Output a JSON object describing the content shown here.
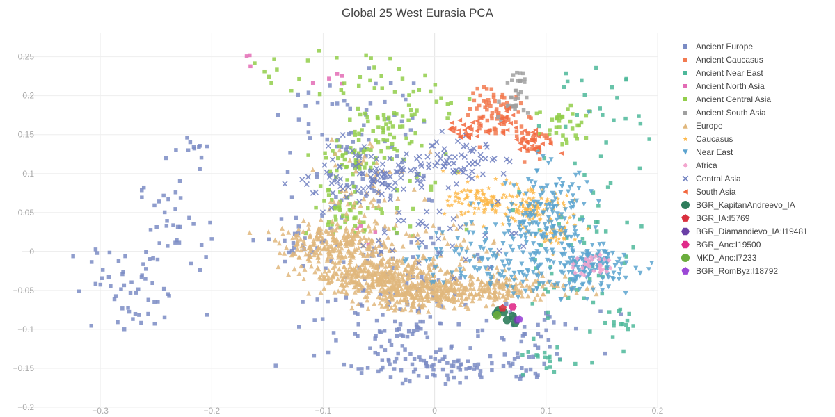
{
  "chart_data": {
    "type": "scatter",
    "title": "Global 25 West Eurasia PCA",
    "xlabel": "",
    "ylabel": "",
    "xlim": [
      -0.37,
      0.2
    ],
    "ylim": [
      -0.2,
      0.28
    ],
    "x_ticks": [
      "−0.3",
      "−0.2",
      "−0.1",
      "0",
      "0.1",
      "0.2"
    ],
    "x_tick_values": [
      -0.3,
      -0.2,
      -0.1,
      0,
      0.1,
      0.2
    ],
    "y_ticks": [
      "0.25",
      "0.2",
      "0.15",
      "0.1",
      "0.05",
      "0",
      "−0.05",
      "−0.1",
      "−0.15",
      "−0.2"
    ],
    "y_tick_values": [
      0.25,
      0.2,
      0.15,
      0.1,
      0.05,
      0,
      -0.05,
      -0.1,
      -0.15,
      -0.2
    ],
    "grid": true,
    "legend_position": "right",
    "series": [
      {
        "name": "Ancient Europe",
        "symbol": "square",
        "color": "#7b8cc4",
        "n_points": 480,
        "clusters": [
          {
            "cx": -0.27,
            "cy": -0.05,
            "sx": 0.03,
            "sy": 0.03,
            "w": 0.12
          },
          {
            "cx": -0.235,
            "cy": 0.04,
            "sx": 0.015,
            "sy": 0.03,
            "w": 0.06
          },
          {
            "cx": -0.22,
            "cy": 0.125,
            "sx": 0.01,
            "sy": 0.01,
            "w": 0.025
          },
          {
            "cx": 0.02,
            "cy": -0.145,
            "sx": 0.05,
            "sy": 0.012,
            "w": 0.22
          },
          {
            "cx": -0.08,
            "cy": 0.18,
            "sx": 0.03,
            "sy": 0.03,
            "w": 0.08
          },
          {
            "cx": -0.04,
            "cy": -0.05,
            "sx": 0.04,
            "sy": 0.04,
            "w": 0.2
          },
          {
            "cx": -0.07,
            "cy": 0.1,
            "sx": 0.025,
            "sy": 0.03,
            "w": 0.1
          },
          {
            "cx": 0.08,
            "cy": -0.1,
            "sx": 0.03,
            "sy": 0.02,
            "w": 0.08
          },
          {
            "cx": -0.12,
            "cy": 0.01,
            "sx": 0.02,
            "sy": 0.02,
            "w": 0.06
          },
          {
            "cx": -0.03,
            "cy": -0.1,
            "sx": 0.02,
            "sy": 0.02,
            "w": 0.06
          }
        ]
      },
      {
        "name": "Ancient Caucasus",
        "symbol": "square",
        "color": "#f27a50",
        "n_points": 90,
        "clusters": [
          {
            "cx": 0.055,
            "cy": 0.17,
            "sx": 0.012,
            "sy": 0.015,
            "w": 0.5
          },
          {
            "cx": 0.09,
            "cy": 0.145,
            "sx": 0.008,
            "sy": 0.01,
            "w": 0.25
          },
          {
            "cx": 0.05,
            "cy": 0.19,
            "sx": 0.008,
            "sy": 0.01,
            "w": 0.25
          }
        ]
      },
      {
        "name": "Ancient Near East",
        "symbol": "square",
        "color": "#4db89a",
        "n_points": 110,
        "clusters": [
          {
            "cx": 0.14,
            "cy": 0.03,
            "sx": 0.03,
            "sy": 0.06,
            "w": 0.35
          },
          {
            "cx": 0.16,
            "cy": -0.1,
            "sx": 0.012,
            "sy": 0.012,
            "w": 0.15
          },
          {
            "cx": 0.1,
            "cy": -0.14,
            "sx": 0.02,
            "sy": 0.01,
            "w": 0.15
          },
          {
            "cx": 0.14,
            "cy": 0.18,
            "sx": 0.025,
            "sy": 0.03,
            "w": 0.2
          },
          {
            "cx": 0.11,
            "cy": -0.05,
            "sx": 0.02,
            "sy": 0.015,
            "w": 0.15
          }
        ]
      },
      {
        "name": "Ancient North Asia",
        "symbol": "square",
        "color": "#e36cb5",
        "n_points": 12,
        "clusters": [
          {
            "cx": -0.168,
            "cy": 0.245,
            "sx": 0.002,
            "sy": 0.004,
            "w": 0.25
          },
          {
            "cx": -0.09,
            "cy": 0.22,
            "sx": 0.015,
            "sy": 0.01,
            "w": 0.4
          },
          {
            "cx": -0.07,
            "cy": 0.035,
            "sx": 0.01,
            "sy": 0.01,
            "w": 0.35
          }
        ]
      },
      {
        "name": "Ancient Central Asia",
        "symbol": "square",
        "color": "#92ce4a",
        "n_points": 240,
        "clusters": [
          {
            "cx": -0.07,
            "cy": 0.12,
            "sx": 0.02,
            "sy": 0.015,
            "w": 0.22
          },
          {
            "cx": -0.04,
            "cy": 0.16,
            "sx": 0.015,
            "sy": 0.012,
            "w": 0.14
          },
          {
            "cx": -0.08,
            "cy": 0.05,
            "sx": 0.015,
            "sy": 0.015,
            "w": 0.18
          },
          {
            "cx": 0.12,
            "cy": 0.16,
            "sx": 0.015,
            "sy": 0.02,
            "w": 0.14
          },
          {
            "cx": -0.03,
            "cy": 0.1,
            "sx": 0.03,
            "sy": 0.04,
            "w": 0.12
          },
          {
            "cx": -0.06,
            "cy": 0.22,
            "sx": 0.04,
            "sy": 0.03,
            "w": 0.12
          },
          {
            "cx": -0.13,
            "cy": 0.24,
            "sx": 0.02,
            "sy": 0.01,
            "w": 0.04
          },
          {
            "cx": 0.01,
            "cy": 0.19,
            "sx": 0.02,
            "sy": 0.01,
            "w": 0.04
          }
        ]
      },
      {
        "name": "Ancient South Asia",
        "symbol": "square",
        "color": "#a0a0a0",
        "n_points": 35,
        "clusters": [
          {
            "cx": 0.07,
            "cy": 0.195,
            "sx": 0.008,
            "sy": 0.015,
            "w": 0.7
          },
          {
            "cx": 0.078,
            "cy": 0.225,
            "sx": 0.004,
            "sy": 0.006,
            "w": 0.3
          }
        ]
      },
      {
        "name": "Europe",
        "symbol": "triangle-up",
        "color": "#e0b77c",
        "n_points": 1100,
        "clusters": [
          {
            "cx": -0.05,
            "cy": -0.03,
            "sx": 0.03,
            "sy": 0.012,
            "w": 0.3
          },
          {
            "cx": -0.01,
            "cy": -0.055,
            "sx": 0.03,
            "sy": 0.01,
            "w": 0.25
          },
          {
            "cx": -0.09,
            "cy": 0.01,
            "sx": 0.025,
            "sy": 0.012,
            "w": 0.2
          },
          {
            "cx": 0.05,
            "cy": -0.045,
            "sx": 0.035,
            "sy": 0.008,
            "w": 0.15
          },
          {
            "cx": -0.07,
            "cy": 0.08,
            "sx": 0.02,
            "sy": 0.04,
            "w": 0.05
          },
          {
            "cx": 0.0,
            "cy": 0.0,
            "sx": 0.05,
            "sy": 0.03,
            "w": 0.05
          }
        ]
      },
      {
        "name": "Caucasus",
        "symbol": "star",
        "color": "#fdb84a",
        "n_points": 230,
        "clusters": [
          {
            "cx": 0.05,
            "cy": 0.065,
            "sx": 0.018,
            "sy": 0.012,
            "w": 0.5
          },
          {
            "cx": 0.09,
            "cy": 0.055,
            "sx": 0.015,
            "sy": 0.01,
            "w": 0.35
          },
          {
            "cx": 0.11,
            "cy": 0.02,
            "sx": 0.01,
            "sy": 0.01,
            "w": 0.15
          }
        ]
      },
      {
        "name": "Near East",
        "symbol": "triangle-down",
        "color": "#5ba3cf",
        "n_points": 420,
        "clusters": [
          {
            "cx": 0.1,
            "cy": 0.05,
            "sx": 0.02,
            "sy": 0.03,
            "w": 0.35
          },
          {
            "cx": 0.14,
            "cy": -0.02,
            "sx": 0.02,
            "sy": 0.015,
            "w": 0.3
          },
          {
            "cx": 0.07,
            "cy": -0.03,
            "sx": 0.04,
            "sy": 0.015,
            "w": 0.2
          },
          {
            "cx": 0.04,
            "cy": 0.01,
            "sx": 0.03,
            "sy": 0.02,
            "w": 0.15
          }
        ]
      },
      {
        "name": "Africa",
        "symbol": "diamond",
        "color": "#f3a6cf",
        "n_points": 30,
        "clusters": [
          {
            "cx": 0.142,
            "cy": -0.018,
            "sx": 0.008,
            "sy": 0.008,
            "w": 1.0
          }
        ]
      },
      {
        "name": "Central Asia",
        "symbol": "x",
        "color": "#6e7fbf",
        "n_points": 180,
        "clusters": [
          {
            "cx": 0.03,
            "cy": 0.12,
            "sx": 0.02,
            "sy": 0.015,
            "w": 0.3
          },
          {
            "cx": -0.04,
            "cy": 0.1,
            "sx": 0.02,
            "sy": 0.015,
            "w": 0.3
          },
          {
            "cx": -0.08,
            "cy": 0.1,
            "sx": 0.02,
            "sy": 0.02,
            "w": 0.2
          },
          {
            "cx": 0.0,
            "cy": 0.03,
            "sx": 0.04,
            "sy": 0.03,
            "w": 0.2
          }
        ]
      },
      {
        "name": "South Asia",
        "symbol": "triangle-left",
        "color": "#f2683f",
        "n_points": 70,
        "clusters": [
          {
            "cx": 0.03,
            "cy": 0.155,
            "sx": 0.01,
            "sy": 0.006,
            "w": 0.4
          },
          {
            "cx": 0.09,
            "cy": 0.14,
            "sx": 0.01,
            "sy": 0.008,
            "w": 0.4
          },
          {
            "cx": 0.065,
            "cy": 0.17,
            "sx": 0.008,
            "sy": 0.01,
            "w": 0.2
          }
        ]
      },
      {
        "name": "BGR_KapitanAndreevo_IA",
        "symbol": "circle",
        "color": "#2e7d5b",
        "x": [
          0.055,
          0.057,
          0.062,
          0.065,
          0.07,
          0.072
        ],
        "y": [
          -0.08,
          -0.076,
          -0.078,
          -0.088,
          -0.083,
          -0.092
        ]
      },
      {
        "name": "BGR_IA:I5769",
        "symbol": "pentagon",
        "color": "#d9303e",
        "x": [
          0.061
        ],
        "y": [
          -0.073
        ]
      },
      {
        "name": "BGR_Diamandievo_IA:I19481",
        "symbol": "hexagon",
        "color": "#6a3fa6",
        "x": [
          0.074
        ],
        "y": [
          -0.088
        ]
      },
      {
        "name": "BGR_Anc:I19500",
        "symbol": "hexagon",
        "color": "#e02b8a",
        "x": [
          0.07
        ],
        "y": [
          -0.071
        ]
      },
      {
        "name": "MKD_Anc:I7233",
        "symbol": "circle",
        "color": "#6aad3c",
        "x": [
          0.056
        ],
        "y": [
          -0.082
        ]
      },
      {
        "name": "BGR_RomByz:I18792",
        "symbol": "pentagon",
        "color": "#9b47d6",
        "x": [
          0.076
        ],
        "y": [
          -0.087
        ]
      }
    ]
  }
}
